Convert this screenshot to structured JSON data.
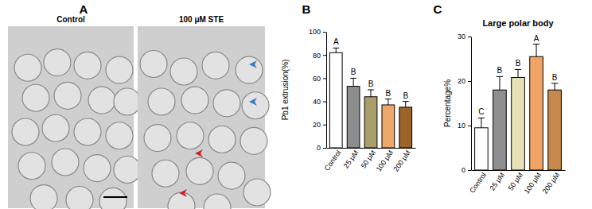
{
  "panel_a": {
    "label": "A",
    "images": [
      "Control",
      "100 μM STE"
    ]
  },
  "chart_data": [
    {
      "type": "bar",
      "panel_label": "B",
      "y_label": "Pb1 extrusion(%)",
      "categories": [
        "Control",
        "25 μM",
        "50 μM",
        "100 μM",
        "200 μM"
      ],
      "values": [
        82,
        53,
        44,
        37,
        35
      ],
      "errors": [
        4,
        7,
        6,
        5,
        5
      ],
      "annotations": [
        "A",
        "B",
        "B",
        "B",
        "B"
      ],
      "colors": [
        "#ffffff",
        "#8c8c8c",
        "#a89e6a",
        "#eda76c",
        "#9c6428"
      ],
      "ylim": [
        0,
        100
      ],
      "yticks": [
        0,
        20,
        40,
        60,
        80,
        100
      ]
    },
    {
      "type": "bar",
      "panel_label": "C",
      "title": "Large polar body",
      "y_label": "Percentage%",
      "categories": [
        "Control",
        "25 μM",
        "50 μM",
        "100 μM",
        "200 μM"
      ],
      "values": [
        9.5,
        18,
        20.8,
        25.5,
        18
      ],
      "errors": [
        2.2,
        3,
        1.8,
        2.8,
        1.5
      ],
      "annotations": [
        "C",
        "B",
        "B",
        "A",
        "B"
      ],
      "colors": [
        "#ffffff",
        "#8f8f8f",
        "#e6e2b6",
        "#f2a466",
        "#c68a4c"
      ],
      "ylim": [
        0,
        30
      ],
      "yticks": [
        0,
        10,
        20,
        30
      ]
    }
  ]
}
